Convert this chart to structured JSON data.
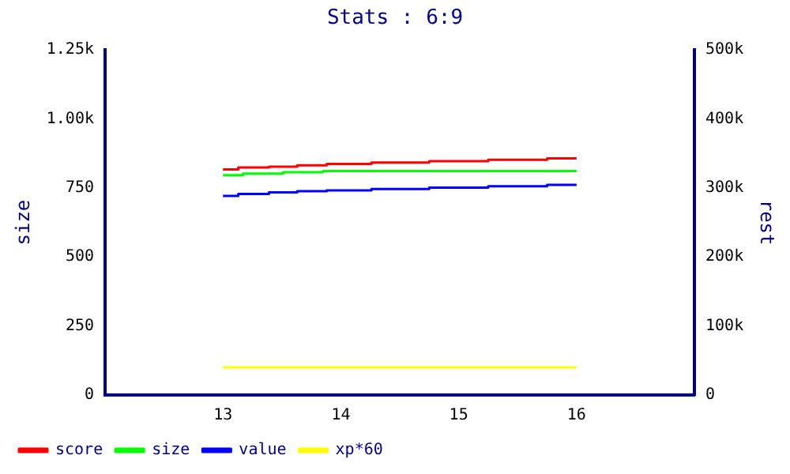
{
  "chart_data": {
    "type": "step",
    "title": "Stats : 6:9",
    "ylabel": "size",
    "y2label": "rest",
    "xlim": [
      12,
      17
    ],
    "xticks": [
      13,
      14,
      15,
      16
    ],
    "ylim": [
      0,
      1250
    ],
    "yticks": [
      0,
      250,
      500,
      750,
      {
        "value": 1000,
        "label": "1.00k"
      },
      {
        "value": 1250,
        "label": "1.25k"
      }
    ],
    "y2lim": [
      0,
      500000
    ],
    "y2ticks": [
      0,
      {
        "value": 100000,
        "label": "100k"
      },
      {
        "value": 200000,
        "label": "200k"
      },
      {
        "value": 300000,
        "label": "300k"
      },
      {
        "value": 400000,
        "label": "400k"
      },
      {
        "value": 500000,
        "label": "500k"
      }
    ],
    "grid": false,
    "legend": "bottom left",
    "marker": "none",
    "line_style": "solid",
    "series": [
      {
        "name": "score",
        "color": "#ff0000",
        "x": [
          13,
          13.13,
          13.39,
          13.63,
          13.88,
          14.26,
          14.75,
          15.25,
          15.75,
          16
        ],
        "values": [
          817,
          824,
          827,
          832,
          837,
          842,
          847,
          852,
          857,
          857
        ]
      },
      {
        "name": "size",
        "color": "#00ff00",
        "x": [
          13,
          13.17,
          13.51,
          13.85,
          16
        ],
        "values": [
          796,
          802,
          807,
          811,
          811
        ]
      },
      {
        "name": "value",
        "color": "#0000ff",
        "x": [
          13,
          13.13,
          13.39,
          13.63,
          13.88,
          14.26,
          14.75,
          15.25,
          15.75,
          16
        ],
        "values": [
          721,
          728,
          734,
          738,
          741,
          746,
          751,
          756,
          761,
          761
        ]
      },
      {
        "name": "xp*60",
        "color": "#ffff00",
        "x": [
          13,
          16
        ],
        "values": [
          100,
          100
        ]
      }
    ]
  }
}
